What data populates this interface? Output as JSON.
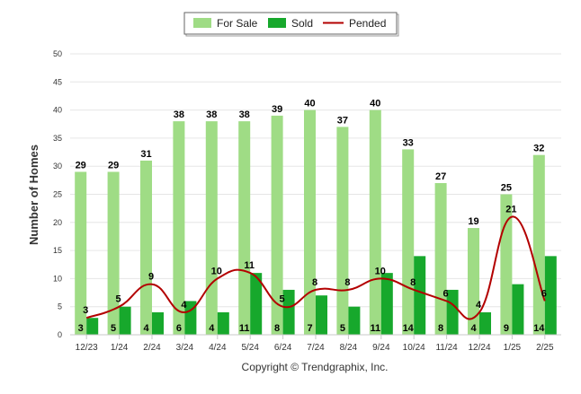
{
  "chart_data": {
    "type": "bar",
    "categories": [
      "12/23",
      "1/24",
      "2/24",
      "3/24",
      "4/24",
      "5/24",
      "6/24",
      "7/24",
      "8/24",
      "9/24",
      "10/24",
      "11/24",
      "12/24",
      "1/25",
      "2/25"
    ],
    "series": [
      {
        "name": "For Sale",
        "type": "bar",
        "color": "#9fdc85",
        "values": [
          29,
          29,
          31,
          38,
          38,
          38,
          39,
          40,
          37,
          40,
          33,
          27,
          19,
          25,
          32
        ]
      },
      {
        "name": "Sold",
        "type": "bar",
        "color": "#17a82c",
        "values": [
          3,
          5,
          4,
          6,
          4,
          11,
          8,
          7,
          5,
          11,
          14,
          8,
          4,
          9,
          14
        ]
      },
      {
        "name": "Pended",
        "type": "line",
        "color": "#b30000",
        "values": [
          3,
          5,
          9,
          4,
          10,
          11,
          5,
          8,
          8,
          10,
          8,
          6,
          4,
          21,
          6
        ]
      }
    ],
    "ylabel": "Number of Homes",
    "xlabel": "",
    "ylim": [
      0,
      50
    ],
    "yticks": [
      0,
      5,
      10,
      15,
      20,
      25,
      30,
      35,
      40,
      45,
      50
    ],
    "grid": true,
    "legend_position": "top-center"
  },
  "footer": {
    "copyright": "Copyright © Trendgraphix, Inc."
  }
}
